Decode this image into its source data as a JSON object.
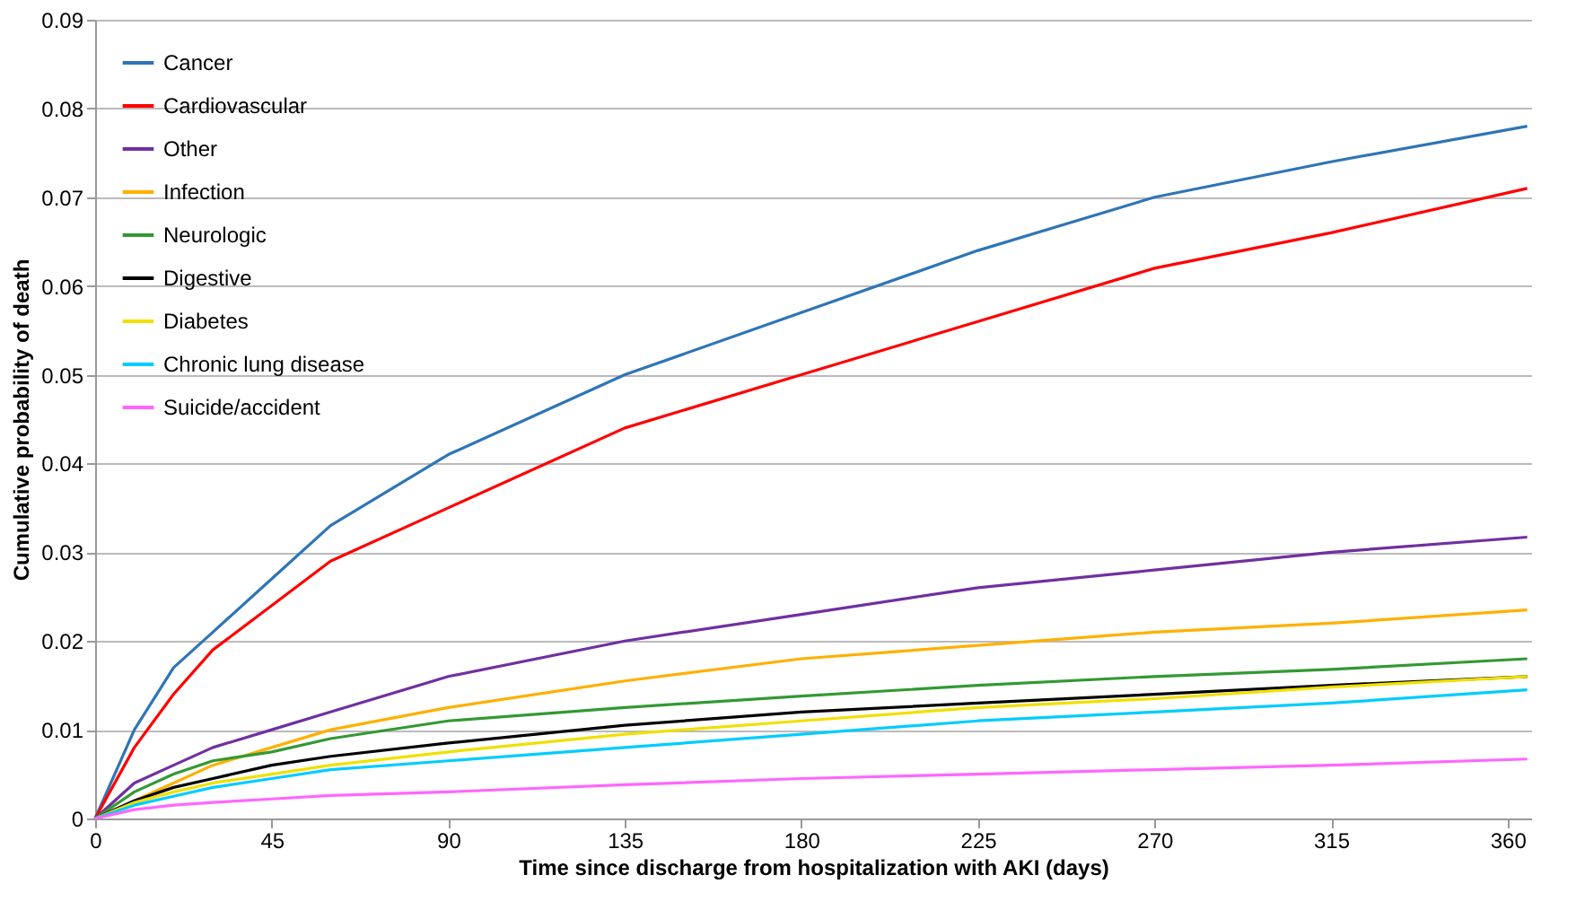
{
  "chart_data": {
    "type": "line",
    "xlabel": "Time since discharge from hospitalization with AKI (days)",
    "ylabel": "Cumulative probability of death",
    "x": [
      0,
      10,
      20,
      30,
      45,
      60,
      90,
      135,
      180,
      225,
      270,
      315,
      365
    ],
    "series": [
      {
        "name": "Cancer",
        "color": "#2e75b6",
        "values": [
          0,
          0.01,
          0.017,
          0.021,
          0.027,
          0.033,
          0.041,
          0.05,
          0.057,
          0.064,
          0.07,
          0.074,
          0.078
        ]
      },
      {
        "name": "Cardiovascular",
        "color": "#ff0000",
        "values": [
          0,
          0.008,
          0.014,
          0.019,
          0.024,
          0.029,
          0.035,
          0.044,
          0.05,
          0.056,
          0.062,
          0.066,
          0.071
        ]
      },
      {
        "name": "Other",
        "color": "#7030a0",
        "values": [
          0,
          0.004,
          0.006,
          0.008,
          0.01,
          0.012,
          0.016,
          0.02,
          0.023,
          0.026,
          0.028,
          0.03,
          0.0317
        ]
      },
      {
        "name": "Infection",
        "color": "#ffb000",
        "values": [
          0,
          0.002,
          0.004,
          0.006,
          0.008,
          0.01,
          0.0125,
          0.0155,
          0.018,
          0.0195,
          0.021,
          0.022,
          0.0235
        ]
      },
      {
        "name": "Neurologic",
        "color": "#339933",
        "values": [
          0,
          0.003,
          0.005,
          0.0065,
          0.0075,
          0.009,
          0.011,
          0.0125,
          0.0138,
          0.015,
          0.016,
          0.0168,
          0.018
        ]
      },
      {
        "name": "Digestive",
        "color": "#000000",
        "values": [
          0,
          0.002,
          0.0035,
          0.0045,
          0.006,
          0.007,
          0.0085,
          0.0105,
          0.012,
          0.013,
          0.014,
          0.015,
          0.016
        ]
      },
      {
        "name": "Diabetes",
        "color": "#f0e000",
        "values": [
          0,
          0.0018,
          0.003,
          0.004,
          0.005,
          0.006,
          0.0075,
          0.0095,
          0.011,
          0.0125,
          0.0135,
          0.0148,
          0.016
        ]
      },
      {
        "name": "Chronic lung disease",
        "color": "#00ccff",
        "values": [
          0,
          0.0015,
          0.0025,
          0.0035,
          0.0045,
          0.0055,
          0.0065,
          0.008,
          0.0095,
          0.011,
          0.012,
          0.013,
          0.0145
        ]
      },
      {
        "name": "Suicide/accident",
        "color": "#ff66ff",
        "values": [
          0,
          0.001,
          0.0015,
          0.0018,
          0.0022,
          0.0026,
          0.003,
          0.0038,
          0.0045,
          0.005,
          0.0055,
          0.006,
          0.0067
        ]
      }
    ],
    "xlim": [
      0,
      366
    ],
    "xticks": [
      0,
      45,
      90,
      135,
      180,
      225,
      270,
      315,
      360
    ],
    "ylim": [
      0,
      0.09
    ],
    "yticks": [
      0,
      0.01,
      0.02,
      0.03,
      0.04,
      0.05,
      0.06,
      0.07,
      0.08,
      0.09
    ],
    "grid": "y",
    "legend": "top left",
    "line_style": "solid",
    "marker": "none"
  }
}
